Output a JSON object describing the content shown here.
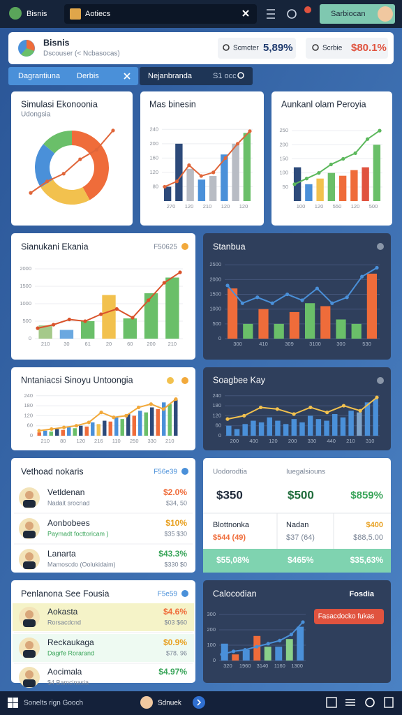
{
  "topbar": {
    "app": "Bisnis",
    "tab": "Aotiecs",
    "user": "Sarbiocan"
  },
  "header": {
    "title": "Bisnis",
    "subtitle": "Dscouser (< Ncbasocas)",
    "stats": [
      {
        "label": "Scmcter",
        "value": "5,89%"
      },
      {
        "label": "Scrbie",
        "value": "$80.1%"
      }
    ]
  },
  "tabs": [
    {
      "label": "Dagrantiuna",
      "sub": "Derbis"
    },
    {
      "label": "Nejanbranda",
      "sub": "S1 occ"
    }
  ],
  "charts": [
    {
      "type": "donut",
      "title": "Simulasi Ekonoonia",
      "subtitle": "Udongsia",
      "values": [
        42,
        24,
        20,
        14
      ],
      "colors": [
        "#ef6c3a",
        "#f2c14e",
        "#4a90d9",
        "#6abf69"
      ],
      "ylim": [
        0,
        80
      ],
      "line": {
        "color": "#e0663a",
        "values": [
          10,
          22,
          30,
          45,
          55,
          75
        ]
      }
    },
    {
      "type": "combo",
      "title": "Mas binesin",
      "ylim": [
        40,
        260
      ],
      "yticks": [
        80,
        120,
        160,
        200,
        240
      ],
      "bars": {
        "values": [
          80,
          200,
          130,
          100,
          110,
          170,
          200,
          230
        ],
        "colors": [
          "#2d4a7a",
          "#2d4a7a",
          "#b8bcc4",
          "#4a90d9",
          "#b8bcc4",
          "#4a90d9",
          "#b8bcc4",
          "#6abf69"
        ]
      },
      "line": {
        "color": "#e0663a",
        "values": [
          80,
          95,
          140,
          110,
          120,
          160,
          200,
          235
        ]
      },
      "xlabels": [
        "270",
        "120",
        "210",
        "120",
        "120"
      ]
    },
    {
      "type": "combo",
      "title": "Aunkanl olam Peroyia",
      "ylim": [
        0,
        280
      ],
      "yticks": [
        50,
        100,
        150,
        200,
        250
      ],
      "bars": {
        "values": [
          120,
          60,
          80,
          100,
          90,
          110,
          120,
          200
        ],
        "colors": [
          "#2d4a7a",
          "#4a90d9",
          "#f2c14e",
          "#6abf69",
          "#ef6c3a",
          "#ef6c3a",
          "#e0533f",
          "#6abf69"
        ]
      },
      "line": {
        "color": "#5cb85c",
        "values": [
          60,
          80,
          100,
          130,
          150,
          170,
          220,
          250
        ]
      },
      "xlabels": [
        "100",
        "120",
        "550",
        "120",
        "500"
      ]
    },
    {
      "type": "combo",
      "title": "Sianukani Ekania",
      "badge": "F50625",
      "ylim": [
        0,
        2200
      ],
      "yticks": [
        0,
        500,
        1000,
        1500,
        2000
      ],
      "bars": {
        "values": [
          380,
          250,
          500,
          1250,
          580,
          1300,
          1750
        ],
        "colors": [
          "#a5c98a",
          "#6aa8e0",
          "#6abf69",
          "#f2c14e",
          "#6abf69",
          "#6abf69",
          "#6abf69"
        ]
      },
      "line": {
        "color": "#d9532b",
        "values": [
          300,
          400,
          550,
          500,
          700,
          850,
          600,
          1100,
          1600,
          1900
        ]
      },
      "xlabels": [
        "210",
        "30",
        "61",
        "20",
        "60",
        "200",
        "210"
      ]
    },
    {
      "type": "combo",
      "title": "Stanbua",
      "ylim": [
        0,
        2600
      ],
      "yticks": [
        0,
        500,
        1000,
        1500,
        2000,
        2500
      ],
      "bars": {
        "values": [
          1700,
          500,
          1000,
          500,
          900,
          1200,
          1100,
          650,
          500,
          2200
        ],
        "colors": [
          "#ef6c3a",
          "#6abf69",
          "#ef6c3a",
          "#6abf69",
          "#ef6c3a",
          "#6abf69",
          "#ef6c3a",
          "#6abf69",
          "#6abf69",
          "#ef6c3a"
        ]
      },
      "line": {
        "color": "#4a90d9",
        "values": [
          1800,
          1200,
          1400,
          1200,
          1500,
          1300,
          1700,
          1200,
          1400,
          2100,
          2400
        ]
      },
      "xlabels": [
        "300",
        "410",
        "309",
        "3100",
        "300",
        "530"
      ]
    },
    {
      "type": "combo",
      "title": "Nntaniacsi Sinoyu Untoongia",
      "ylim": [
        0,
        260
      ],
      "yticks": [
        0,
        60,
        120,
        180,
        240
      ],
      "bars": {
        "values": [
          20,
          30,
          25,
          40,
          35,
          50,
          45,
          60,
          55,
          80,
          70,
          90,
          85,
          110,
          100,
          130,
          120,
          150,
          140,
          170,
          160,
          200,
          190,
          220
        ],
        "colors": [
          "#ef6c3a",
          "#4a90d9",
          "#6abf69",
          "#2d4a7a",
          "#ef6c3a",
          "#4a90d9",
          "#6abf69",
          "#2d4a7a",
          "#ef6c3a",
          "#4a90d9",
          "#f2c14e",
          "#2d4a7a",
          "#ef6c3a",
          "#4a90d9",
          "#6abf69",
          "#2d4a7a",
          "#ef6c3a",
          "#4a90d9",
          "#6abf69",
          "#2d4a7a",
          "#ef6c3a",
          "#4a90d9",
          "#6abf69",
          "#2d4a7a"
        ]
      },
      "line": {
        "color": "#f2a93b",
        "values": [
          30,
          40,
          50,
          60,
          80,
          140,
          110,
          120,
          170,
          190,
          160,
          220
        ]
      },
      "xlabels": [
        "210",
        "80",
        "120",
        "216",
        "110",
        "250",
        "330",
        "210"
      ]
    },
    {
      "type": "combo",
      "title": "Soagbee Kay",
      "ylim": [
        0,
        260
      ],
      "yticks": [
        0,
        60,
        120,
        180,
        240
      ],
      "bars": {
        "values": [
          60,
          40,
          70,
          90,
          80,
          110,
          90,
          70,
          100,
          80,
          120,
          100,
          90,
          130,
          110,
          150,
          140,
          200,
          220
        ],
        "colors": [
          "#4a90d9",
          "#4a90d9",
          "#4a90d9",
          "#4a90d9",
          "#4a90d9",
          "#4a90d9",
          "#4a90d9",
          "#4a90d9",
          "#4a90d9",
          "#4a90d9",
          "#4a90d9",
          "#4a90d9",
          "#4a90d9",
          "#4a90d9",
          "#4a90d9",
          "#4a90d9",
          "#7fa3c8",
          "#4a90d9",
          "#4a90d9"
        ]
      },
      "line": {
        "color": "#f2c14e",
        "values": [
          100,
          120,
          170,
          160,
          130,
          170,
          140,
          180,
          150,
          230
        ]
      },
      "xlabels": [
        "200",
        "400",
        "120",
        "200",
        "330",
        "440",
        "210",
        "310"
      ]
    },
    {
      "type": "combo",
      "title": "Calocodian",
      "badge": "Fosdia",
      "button": "Fasacdocko fukas",
      "ylim": [
        0,
        300
      ],
      "yticks": [
        0,
        100,
        200,
        300
      ],
      "bars": {
        "values": [
          110,
          40,
          70,
          160,
          90,
          90,
          140,
          220
        ],
        "colors": [
          "#4a90d9",
          "#ef6c3a",
          "#4a90d9",
          "#ef6c3a",
          "#8ad08a",
          "#4a90d9",
          "#8ad08a",
          "#4a90d9"
        ]
      },
      "line": {
        "color": "#4a90d9",
        "values": [
          40,
          60,
          70,
          90,
          110,
          130,
          170,
          250
        ]
      },
      "xlabels": [
        "320",
        "1960",
        "3140",
        "1160",
        "1300"
      ]
    }
  ],
  "list1": {
    "title": "Vethoad nokaris",
    "badge": "F56e39",
    "rows": [
      {
        "name": "Vetldenan",
        "sub": "Nadait srocnad",
        "value": "$2.0%",
        "sub_value": "$34, 50"
      },
      {
        "name": "Aonbobees",
        "sub": "Paymadt focttoricam )",
        "value": "$10%",
        "sub_value": "$35 $30"
      },
      {
        "name": "Lanarta",
        "sub": "Mamoscdo (Oolukidaim)",
        "value": "$43.3%",
        "sub_value": "$330 $0"
      }
    ]
  },
  "summary": {
    "label_left": "Uodorodtia",
    "label_right": "Iuegalsiouns",
    "top": [
      "$350",
      "$500",
      "$859%"
    ],
    "mid_labels": [
      "Blottnonka",
      "Nadan",
      "$400"
    ],
    "mid_values": [
      "$544 (49)",
      "$37 (64)",
      "$88,5.00"
    ],
    "bottom": [
      "$55,08%",
      "$465%",
      "$35,63%"
    ]
  },
  "list2": {
    "title": "Penlanona See Fousia",
    "badge": "F5e59",
    "rows": [
      {
        "name": "Aokasta",
        "sub": "Rorsacdcnd",
        "value": "$4.6%",
        "sub_value": "$03 $60"
      },
      {
        "name": "Reckaukaga",
        "sub": "Dagrfe Rorarand",
        "value": "$0.9%",
        "sub_value": "$78. 96"
      },
      {
        "name": "Aocimala",
        "sub": "$4 Bamcinasia",
        "value": "$4.97%"
      }
    ]
  },
  "taskbar": {
    "search": "Sonelts rign Gooch",
    "user": "Sdnuek"
  }
}
